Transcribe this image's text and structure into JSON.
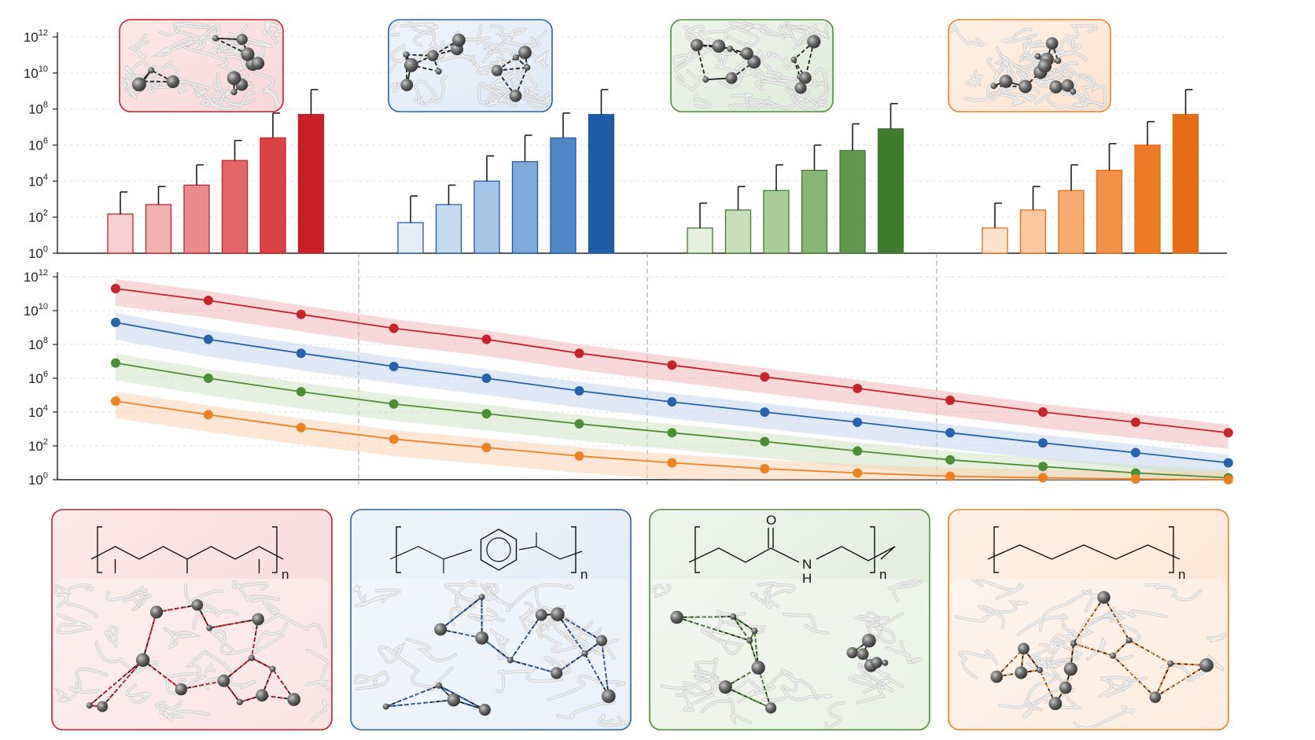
{
  "colors": {
    "red": [
      "#f6d0d0",
      "#f1b1b1",
      "#ea8c8c",
      "#e36767",
      "#db4343",
      "#c72127"
    ],
    "blue": [
      "#e3eef9",
      "#c4daf1",
      "#a4c5e8",
      "#7fabdc",
      "#4f88c8",
      "#1e5aa6"
    ],
    "green": [
      "#e6f0df",
      "#c8dfba",
      "#a8cd95",
      "#86b672",
      "#5e9a4a",
      "#3f7a2f"
    ],
    "orange": [
      "#fde2cc",
      "#fbc79f",
      "#f8ac73",
      "#f49149",
      "#ef7a25",
      "#e56c15"
    ],
    "line": {
      "red": "#c8222b",
      "blue": "#2563ad",
      "green": "#4b8f35",
      "orange": "#ee8020"
    }
  },
  "chart_data": [
    {
      "type": "bar",
      "yscale": "log",
      "ylim": [
        1,
        1000000000000
      ],
      "yticks": [
        {
          "base": "10",
          "exp": "0"
        },
        {
          "base": "10",
          "exp": "2"
        },
        {
          "base": "10",
          "exp": "4"
        },
        {
          "base": "10",
          "exp": "6"
        },
        {
          "base": "10",
          "exp": "8"
        },
        {
          "base": "10",
          "exp": "10"
        },
        {
          "base": "10",
          "exp": "12"
        }
      ],
      "grid": true,
      "groups": [
        {
          "color": "red",
          "values": [
            150,
            500,
            6000,
            140000,
            2500000,
            50000000
          ],
          "error_upper": [
            2500,
            5000,
            80000,
            1800000,
            60000000,
            1200000000
          ]
        },
        {
          "color": "blue",
          "values": [
            50,
            500,
            10000,
            120000,
            2500000,
            50000000
          ],
          "error_upper": [
            1500,
            6000,
            250000,
            3500000,
            60000000,
            1200000000
          ]
        },
        {
          "color": "green",
          "values": [
            25,
            250,
            3000,
            40000,
            500000,
            8000000
          ],
          "error_upper": [
            600,
            5000,
            80000,
            1000000,
            15000000,
            200000000
          ]
        },
        {
          "color": "orange",
          "values": [
            25,
            250,
            3000,
            40000,
            1000000,
            50000000
          ],
          "error_upper": [
            600,
            5000,
            80000,
            1200000,
            20000000,
            1200000000
          ]
        }
      ]
    },
    {
      "type": "line",
      "yscale": "log",
      "ylim": [
        1,
        1000000000000
      ],
      "yticks": [
        {
          "base": "10",
          "exp": "0"
        },
        {
          "base": "10",
          "exp": "2"
        },
        {
          "base": "10",
          "exp": "4"
        },
        {
          "base": "10",
          "exp": "6"
        },
        {
          "base": "10",
          "exp": "8"
        },
        {
          "base": "10",
          "exp": "10"
        },
        {
          "base": "10",
          "exp": "12"
        }
      ],
      "x": [
        1,
        2,
        3,
        4,
        5,
        6,
        7,
        8,
        9,
        10,
        11,
        12,
        13
      ],
      "series": [
        {
          "color": "red",
          "values": [
            200000000000.0,
            40000000000.0,
            6000000000.0,
            900000000.0,
            200000000.0,
            30000000.0,
            6000000.0,
            1200000.0,
            250000.0,
            50000.0,
            10000.0,
            2500.0,
            600.0
          ]
        },
        {
          "color": "blue",
          "values": [
            2000000000.0,
            200000000.0,
            30000000.0,
            5000000.0,
            1000000.0,
            180000.0,
            40000.0,
            10000.0,
            2500.0,
            600.0,
            150.0,
            40.0,
            10.0
          ]
        },
        {
          "color": "green",
          "values": [
            8000000.0,
            1000000.0,
            160000.0,
            30000.0,
            8000.0,
            2000.0,
            600.0,
            180.0,
            50.0,
            15.0,
            6,
            2.5,
            1.3
          ]
        },
        {
          "color": "orange",
          "values": [
            45000.0,
            7000.0,
            1200.0,
            250.0,
            80.0,
            25.0,
            10.0,
            4.5,
            2.5,
            1.6,
            1.3,
            1.1,
            1.0
          ]
        }
      ]
    }
  ],
  "structures": [
    {
      "name": "polypropylene",
      "repeat_label": "n"
    },
    {
      "name": "polystyrene-like",
      "repeat_label": "n"
    },
    {
      "name": "polyamide",
      "repeat_label": "n",
      "atoms": {
        "oxygen": "O",
        "nitrogen": "N",
        "hydrogen": "H"
      }
    },
    {
      "name": "polyethylene",
      "repeat_label": "n"
    }
  ]
}
